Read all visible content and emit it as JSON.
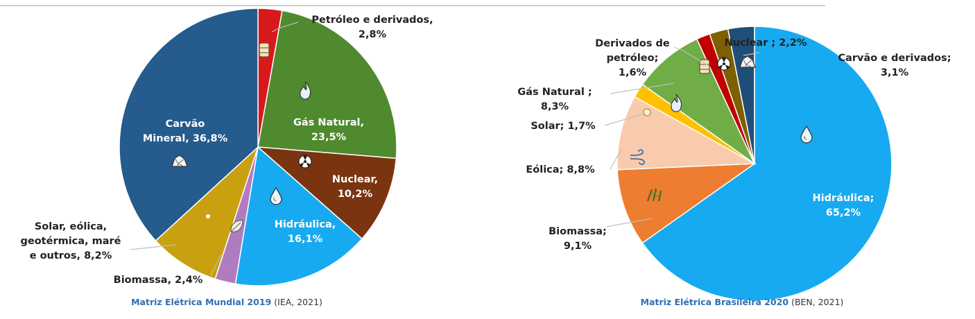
{
  "chart_data": [
    {
      "type": "pie",
      "caption_bold": "Matriz Elétrica Mundial 2019",
      "caption_rest": " (IEA, 2021)",
      "caption_color": "#2f6fb0",
      "slices": [
        {
          "label_lines": [
            "Petróleo e derivados,",
            "2,8%"
          ],
          "value": 2.8,
          "color": "#d7191c",
          "icon": "oil-barrel-icon"
        },
        {
          "label_lines": [
            "Gás Natural,",
            "23,5%"
          ],
          "value": 23.5,
          "color": "#4f8a2e",
          "icon": "gas-flame-icon"
        },
        {
          "label_lines": [
            "Nuclear,",
            "10,2%"
          ],
          "value": 10.2,
          "color": "#7a3510",
          "icon": "radiation-icon"
        },
        {
          "label_lines": [
            "Hidráulica,",
            "16,1%"
          ],
          "value": 16.1,
          "color": "#18aaf0",
          "icon": "water-drop-icon"
        },
        {
          "label_lines": [
            "Biomassa, 2,4%"
          ],
          "value": 2.4,
          "color": "#b07cc0",
          "icon": "leaf-icon"
        },
        {
          "label_lines": [
            "Solar, eólica,",
            "geotérmica, maré",
            "e outros, 8,2%"
          ],
          "value": 8.2,
          "color": "#c9a010",
          "icon": "renewables-icon"
        },
        {
          "label_lines": [
            "Carvão",
            "Mineral, 36,8%"
          ],
          "value": 36.8,
          "color": "#255b8d",
          "icon": "coal-icon"
        }
      ]
    },
    {
      "type": "pie",
      "caption_bold": "Matriz Elétrica Brasileira 2020",
      "caption_rest": " (BEN, 2021)",
      "caption_color": "#2f6fb0",
      "slices": [
        {
          "label_lines": [
            "Hidráulica;",
            "65,2%"
          ],
          "value": 65.2,
          "color": "#18aaf0",
          "icon": "water-drop-icon"
        },
        {
          "label_lines": [
            "Biomassa;",
            "9,1%"
          ],
          "value": 9.1,
          "color": "#ed7d31",
          "icon": "sugarcane-icon"
        },
        {
          "label_lines": [
            "Eólica; 8,8%"
          ],
          "value": 8.8,
          "color": "#f8cbad",
          "icon": "wind-icon"
        },
        {
          "label_lines": [
            "Solar; 1,7%"
          ],
          "value": 1.7,
          "color": "#ffc000",
          "icon": "sun-icon"
        },
        {
          "label_lines": [
            "Gás Natural ;",
            "8,3%"
          ],
          "value": 8.3,
          "color": "#70ad47",
          "icon": "gas-flame-icon"
        },
        {
          "label_lines": [
            "Derivados de",
            "petróleo;",
            "1,6%"
          ],
          "value": 1.6,
          "color": "#c00000",
          "icon": "oil-barrel-icon"
        },
        {
          "label_lines": [
            "Nuclear ; 2,2%"
          ],
          "value": 2.2,
          "color": "#7f6000",
          "icon": "radiation-icon"
        },
        {
          "label_lines": [
            "Carvão e derivados;",
            "3,1%"
          ],
          "value": 3.1,
          "color": "#1f4e79",
          "icon": "coal-icon"
        }
      ]
    }
  ]
}
